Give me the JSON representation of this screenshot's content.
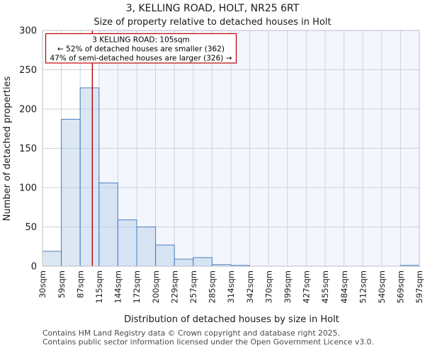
{
  "title": "3, KELLING ROAD, HOLT, NR25 6RT",
  "subtitle": "Size of property relative to detached houses in Holt",
  "annotation": {
    "line1": "3 KELLING ROAD: 105sqm",
    "line2": "← 52% of detached houses are smaller (362)",
    "line3": "47% of semi-detached houses are larger (326) →"
  },
  "footer": {
    "line1": "Contains HM Land Registry data © Crown copyright and database right 2025.",
    "line2": "Contains public sector information licensed under the Open Government Licence v3.0."
  },
  "chart_data": {
    "type": "bar",
    "title": "3, KELLING ROAD, HOLT, NR25 6RT",
    "subtitle": "Size of property relative to detached houses in Holt",
    "xlabel": "Distribution of detached houses by size in Holt",
    "ylabel": "Number of detached properties",
    "categories": [
      "30sqm",
      "59sqm",
      "87sqm",
      "115sqm",
      "144sqm",
      "172sqm",
      "200sqm",
      "229sqm",
      "257sqm",
      "285sqm",
      "314sqm",
      "342sqm",
      "370sqm",
      "399sqm",
      "427sqm",
      "455sqm",
      "484sqm",
      "512sqm",
      "540sqm",
      "569sqm",
      "597sqm"
    ],
    "bin_edges_sqm": [
      30,
      59,
      87,
      115,
      144,
      172,
      200,
      229,
      257,
      285,
      314,
      342,
      370,
      399,
      427,
      455,
      484,
      512,
      540,
      569,
      597
    ],
    "values": [
      19,
      187,
      227,
      106,
      59,
      50,
      27,
      9,
      11,
      2,
      1,
      0,
      0,
      0,
      0,
      0,
      0,
      0,
      0,
      1
    ],
    "ylim": [
      0,
      300
    ],
    "yticks": [
      0,
      50,
      100,
      150,
      200,
      250,
      300
    ],
    "grid": true,
    "legend_position": "none",
    "marker_value_sqm": 105,
    "marker_color": "#b30000",
    "shade_from_sqm": 115,
    "shade_color": "#f3f6fc",
    "bar_fill": "#b9cfe9",
    "bar_fill_opacity": 0.5,
    "bar_stroke": "#4d7fbf",
    "gridline_color": "#ccd2dc",
    "frame_color": "#b9bfc9"
  }
}
